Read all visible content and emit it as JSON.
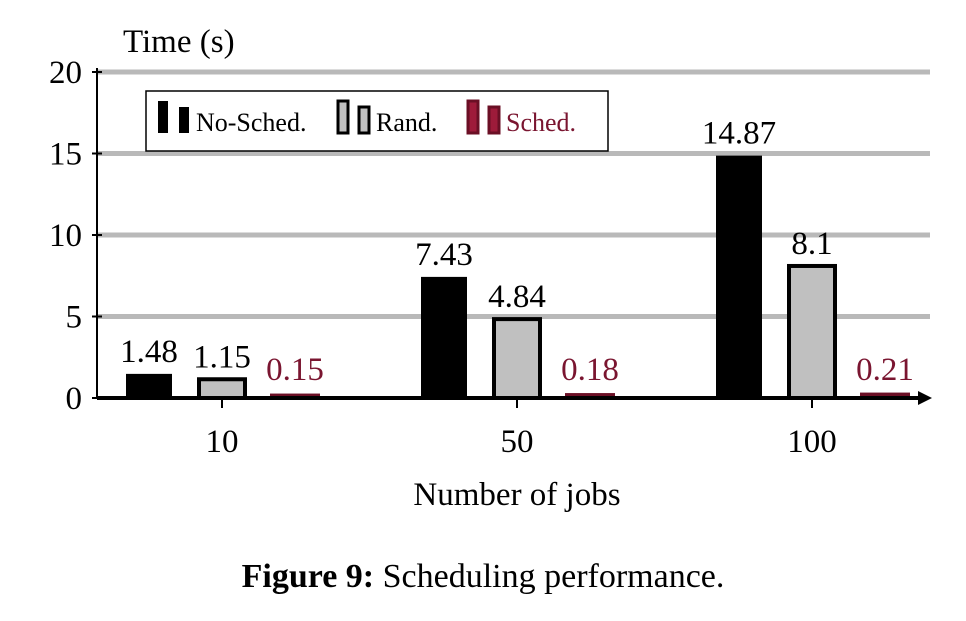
{
  "chart_data": {
    "type": "bar",
    "categories": [
      "10",
      "50",
      "100"
    ],
    "series": [
      {
        "name": "No-Sched.",
        "values": [
          1.48,
          7.43,
          14.87
        ],
        "labels": [
          "1.48",
          "7.43",
          "14.87"
        ],
        "fill": "#000000",
        "stroke": "#000000",
        "label_color": "#000000"
      },
      {
        "name": "Rand.",
        "values": [
          1.15,
          4.84,
          8.1
        ],
        "labels": [
          "1.15",
          "4.84",
          "8.1"
        ],
        "fill": "#c0c0c0",
        "stroke": "#000000",
        "label_color": "#000000"
      },
      {
        "name": "Sched.",
        "values": [
          0.15,
          0.18,
          0.21
        ],
        "labels": [
          "0.15",
          "0.18",
          "0.21"
        ],
        "fill": "#9e1b3a",
        "stroke": "#6b0f25",
        "label_color": "#7a1530"
      }
    ],
    "ylabel": "Time (s)",
    "xlabel": "Number of jobs",
    "ylim": [
      0,
      20
    ],
    "yticks": [
      "0",
      "5",
      "10",
      "15",
      "20"
    ],
    "grid": true,
    "legend_position": "top-left"
  },
  "caption": {
    "label": "Figure 9:",
    "text": " Scheduling performance."
  }
}
